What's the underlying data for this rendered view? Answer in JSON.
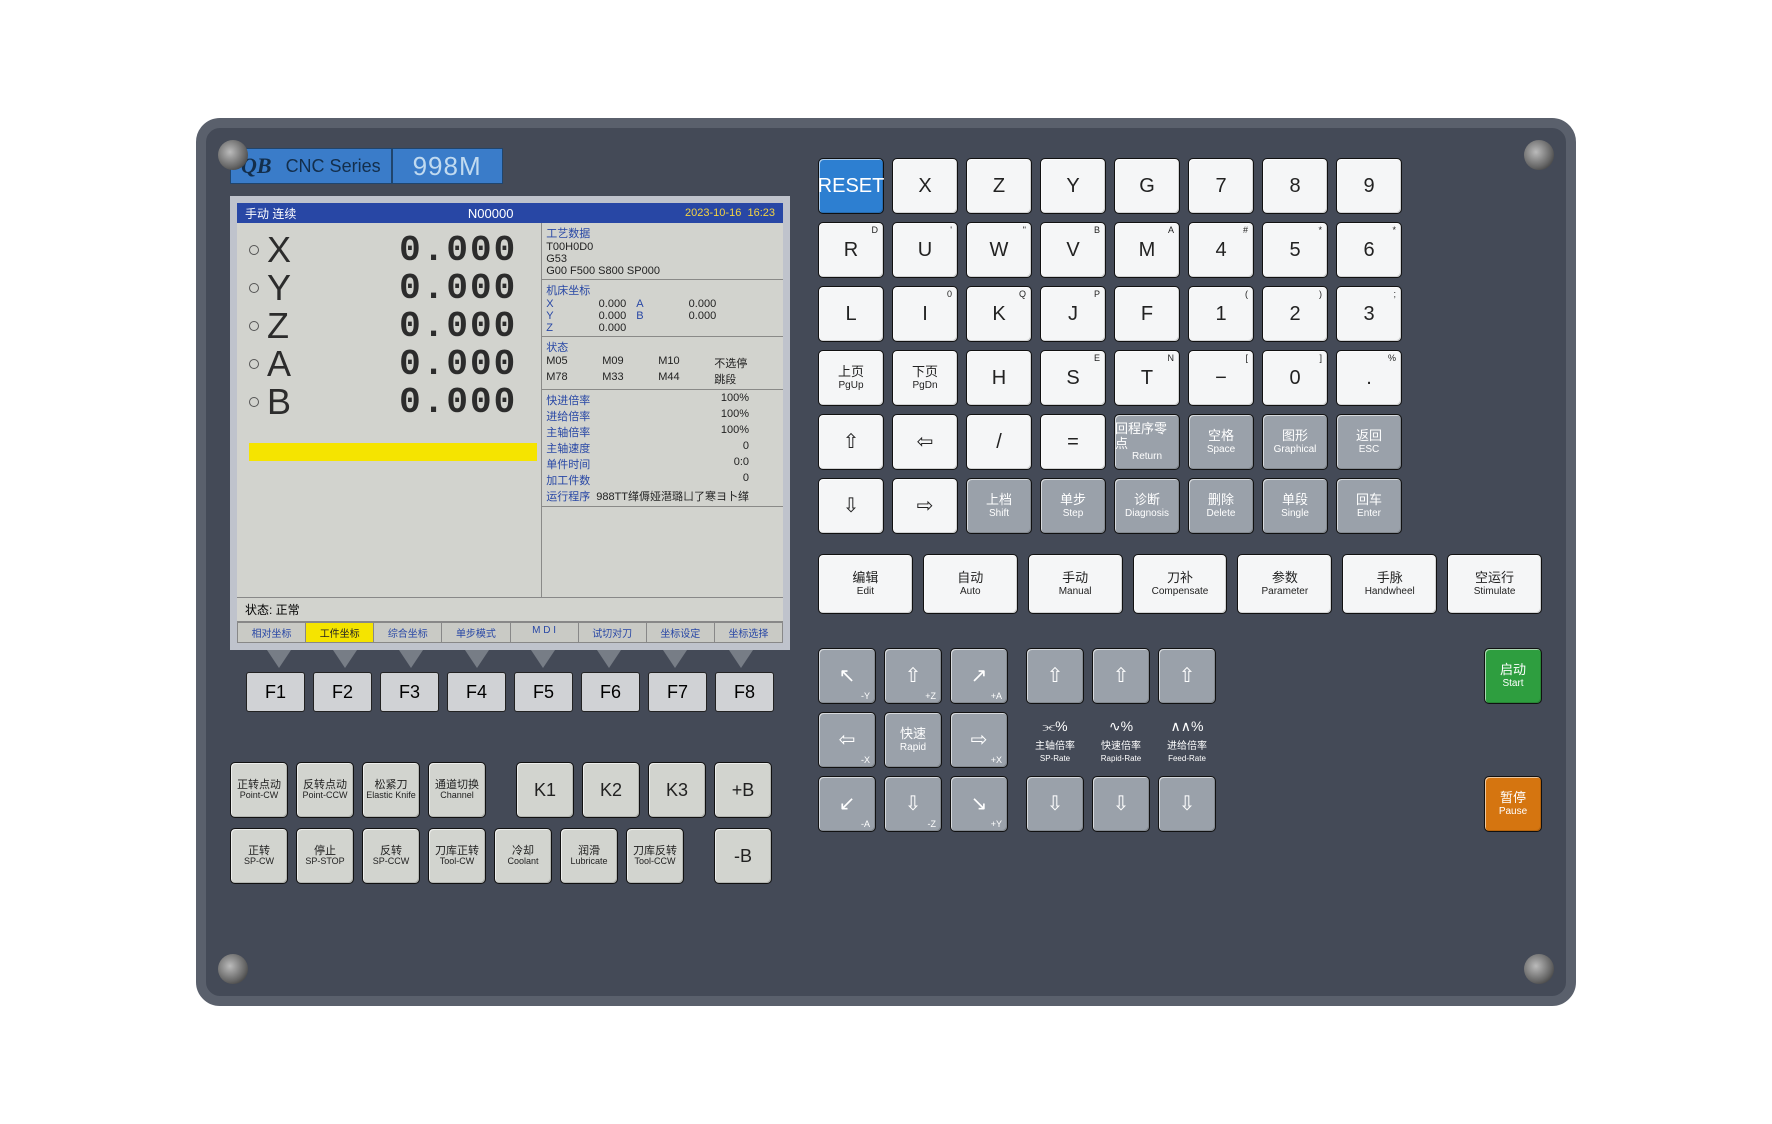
{
  "header": {
    "qb": "QB",
    "cnc": "CNC  Series",
    "model": "998M"
  },
  "screen": {
    "top": {
      "left": "手动   连续",
      "mid": "N00000",
      "date": "2023-10-16",
      "time": "16:23"
    },
    "axes": [
      {
        "name": "X",
        "value": "0.000"
      },
      {
        "name": "Y",
        "value": "0.000"
      },
      {
        "name": "Z",
        "value": "0.000"
      },
      {
        "name": "A",
        "value": "0.000"
      },
      {
        "name": "B",
        "value": "0.000"
      }
    ],
    "tech_h": "工艺数据",
    "tech": [
      "T00H0D0",
      "G53",
      "G00  F500    S800    SP000"
    ],
    "mc_h": "机床坐标",
    "mc": [
      {
        "ax": "X",
        "v1": "0.000",
        "ax2": "A",
        "v2": "0.000"
      },
      {
        "ax": "Y",
        "v1": "0.000",
        "ax2": "B",
        "v2": "0.000"
      },
      {
        "ax": "Z",
        "v1": "0.000",
        "ax2": "",
        "v2": ""
      }
    ],
    "st_h": "状态",
    "st": [
      [
        "M05",
        "M09",
        "M10",
        "不选停"
      ],
      [
        "M78",
        "M33",
        "M44",
        "跳段"
      ]
    ],
    "rates": [
      {
        "lab": "快进倍率",
        "val": "100%"
      },
      {
        "lab": "进给倍率",
        "val": "100%"
      },
      {
        "lab": "主轴倍率",
        "val": "100%"
      },
      {
        "lab": "主轴速度",
        "val": "0"
      },
      {
        "lab": "单件时间",
        "val": "0:0"
      },
      {
        "lab": "加工件数",
        "val": "0"
      },
      {
        "lab": "运行程序",
        "val": "988TT缂傉娅潖璐ㄩ了寒ヨ卜缂"
      }
    ],
    "status": "状态:  正常",
    "tabs": [
      "相对坐标",
      "工件坐标",
      "综合坐标",
      "单步模式",
      "M D I",
      "试切对刀",
      "坐标设定",
      "坐标选择"
    ],
    "tab_sel": 1
  },
  "fkeys": [
    "F1",
    "F2",
    "F3",
    "F4",
    "F5",
    "F6",
    "F7",
    "F8"
  ],
  "kb": {
    "r1": [
      {
        "t": "RESET",
        "cls": "blue",
        "sz": "11"
      },
      {
        "t": "X"
      },
      {
        "t": "Z"
      },
      {
        "t": "Y"
      },
      {
        "t": "G"
      },
      {
        "t": "7"
      },
      {
        "t": "8"
      },
      {
        "t": "9"
      }
    ],
    "r2": [
      {
        "t": "R",
        "sup": "D"
      },
      {
        "t": "U",
        "sup": "'"
      },
      {
        "t": "W",
        "sup": "\""
      },
      {
        "t": "V",
        "sup": "B"
      },
      {
        "t": "M",
        "sup": "A"
      },
      {
        "t": "4",
        "sup": "#"
      },
      {
        "t": "5",
        "sup": "*"
      },
      {
        "t": "6",
        "sup": "*"
      }
    ],
    "r3": [
      {
        "t": "L"
      },
      {
        "t": "I",
        "sup": "0"
      },
      {
        "t": "K",
        "sup": "Q"
      },
      {
        "t": "J",
        "sup": "P"
      },
      {
        "t": "F"
      },
      {
        "t": "1",
        "sup": "("
      },
      {
        "t": "2",
        "sup": ")"
      },
      {
        "t": "3",
        "sup": ";"
      }
    ],
    "r4": [
      {
        "cn": "上页",
        "en": "PgUp"
      },
      {
        "cn": "下页",
        "en": "PgDn"
      },
      {
        "t": "H"
      },
      {
        "t": "S",
        "sup": "E"
      },
      {
        "t": "T",
        "sup": "N"
      },
      {
        "t": "−",
        "sup": "["
      },
      {
        "t": "0",
        "sup": "]"
      },
      {
        "t": ".",
        "sup": "%"
      }
    ],
    "r5": [
      {
        "ar": "⇧"
      },
      {
        "ar": "⇦"
      },
      {
        "t": "/"
      },
      {
        "t": "="
      },
      {
        "cn": "回程序零点",
        "en": "Return",
        "cls": "gray"
      },
      {
        "cn": "空格",
        "en": "Space",
        "cls": "gray"
      },
      {
        "cn": "图形",
        "en": "Graphical",
        "cls": "gray"
      },
      {
        "cn": "返回",
        "en": "ESC",
        "cls": "gray"
      }
    ],
    "r6": [
      {
        "ar": "⇩"
      },
      {
        "ar": "⇨"
      },
      {
        "cn": "上档",
        "en": "Shift",
        "cls": "gray"
      },
      {
        "cn": "单步",
        "en": "Step",
        "cls": "gray"
      },
      {
        "cn": "诊断",
        "en": "Diagnosis",
        "cls": "gray"
      },
      {
        "cn": "删除",
        "en": "Delete",
        "cls": "gray"
      },
      {
        "cn": "单段",
        "en": "Single",
        "cls": "gray"
      },
      {
        "cn": "回车",
        "en": "Enter",
        "cls": "gray"
      }
    ]
  },
  "modes": [
    {
      "cn": "编辑",
      "en": "Edit"
    },
    {
      "cn": "自动",
      "en": "Auto"
    },
    {
      "cn": "手动",
      "en": "Manual"
    },
    {
      "cn": "刀补",
      "en": "Compensate"
    },
    {
      "cn": "参数",
      "en": "Parameter"
    },
    {
      "cn": "手脉",
      "en": "Handwheel"
    },
    {
      "cn": "空运行",
      "en": "Stimulate"
    }
  ],
  "jog": {
    "nw": {
      "sub": "-Y"
    },
    "n": {
      "sub": "+Z"
    },
    "ne": {
      "sub": "+A"
    },
    "w": {
      "sub": "-X"
    },
    "c": {
      "cn": "快速",
      "en": "Rapid"
    },
    "e": {
      "sub": "+X"
    },
    "sw": {
      "sub": "-A"
    },
    "s": {
      "sub": "-Z"
    },
    "se": {
      "sub": "+Y"
    }
  },
  "rates_kb": [
    {
      "cn": "主轴倍率",
      "en": "SP-Rate",
      "ico": "⫘%"
    },
    {
      "cn": "快速倍率",
      "en": "Rapid-Rate",
      "ico": "∿%"
    },
    {
      "cn": "进给倍率",
      "en": "Feed-Rate",
      "ico": "∧∧%"
    }
  ],
  "startstop": {
    "start": {
      "cn": "启动",
      "en": "Start"
    },
    "pause": {
      "cn": "暂停",
      "en": "Pause"
    }
  },
  "ctrl": {
    "r1": [
      {
        "cn": "正转点动",
        "en": "Point-CW"
      },
      {
        "cn": "反转点动",
        "en": "Point-CCW"
      },
      {
        "cn": "松紧刀",
        "en": "Elastic Knife"
      },
      {
        "cn": "通道切换",
        "en": "Channel"
      },
      {
        "t": "K1"
      },
      {
        "t": "K2"
      },
      {
        "t": "K3"
      },
      {
        "t": "+B"
      }
    ],
    "r2": [
      {
        "cn": "正转",
        "en": "SP-CW"
      },
      {
        "cn": "停止",
        "en": "SP-STOP"
      },
      {
        "cn": "反转",
        "en": "SP-CCW"
      },
      {
        "cn": "刀库正转",
        "en": "Tool-CW"
      },
      {
        "cn": "冷却",
        "en": "Coolant"
      },
      {
        "cn": "润滑",
        "en": "Lubricate"
      },
      {
        "cn": "刀库反转",
        "en": "Tool-CCW"
      },
      {
        "t": "-B"
      }
    ]
  }
}
